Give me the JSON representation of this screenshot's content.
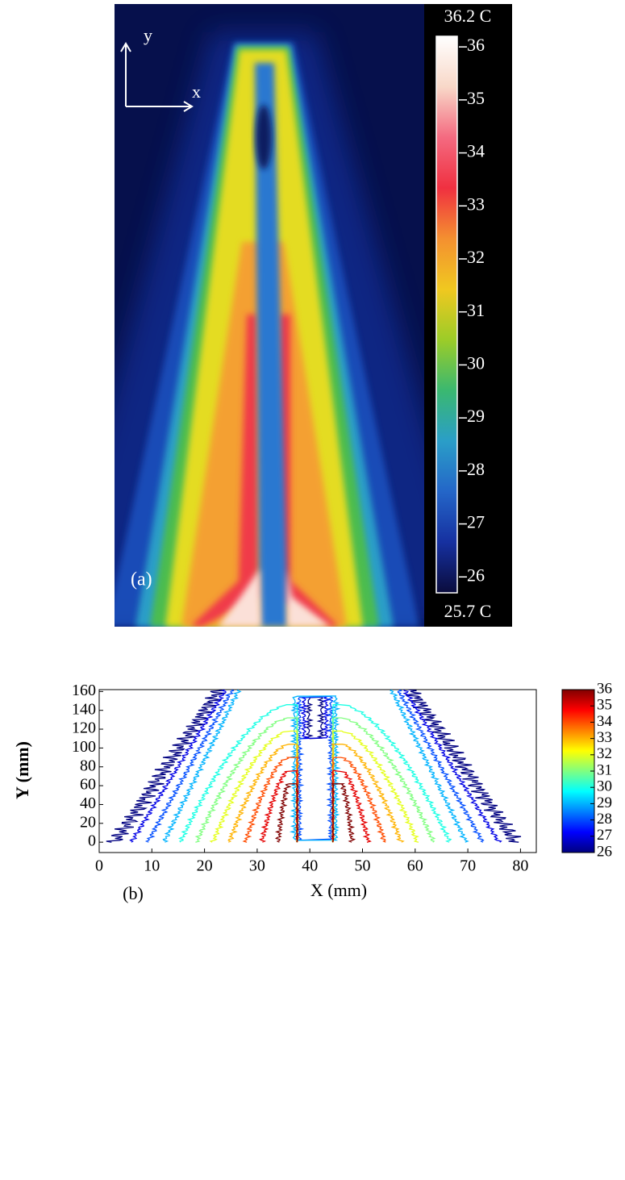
{
  "chart_data": [
    {
      "type": "thermal-image",
      "panel_label": "(a)",
      "y_arrow_label": "y",
      "x_arrow_label": "x",
      "colorbar_max_label": "36.2 C",
      "colorbar_min_label": "25.7 C",
      "clim": [
        25.7,
        36.2
      ],
      "cticks": [
        26,
        27,
        28,
        29,
        30,
        31,
        32,
        33,
        34,
        35,
        36
      ],
      "colormap_colors": [
        "#0a0c3c",
        "#1630a0",
        "#2466c8",
        "#2a9ec8",
        "#3ab870",
        "#9ccc28",
        "#f0c820",
        "#f49030",
        "#f03040",
        "#f46a80",
        "#f8d8c8",
        "#ffffff"
      ]
    },
    {
      "type": "contour",
      "panel_label": "(b)",
      "xlabel": "X (mm)",
      "ylabel": "Y (mm)",
      "xlim": [
        0,
        83
      ],
      "ylim": [
        -11,
        162
      ],
      "xticks": [
        0,
        10,
        20,
        30,
        40,
        50,
        60,
        70,
        80
      ],
      "yticks": [
        0,
        20,
        40,
        60,
        80,
        100,
        120,
        140,
        160
      ],
      "levels": [
        26,
        27,
        28,
        29,
        30,
        31,
        32,
        33,
        34,
        35,
        36
      ],
      "clim": [
        26,
        36
      ],
      "cticks": [
        26,
        27,
        28,
        29,
        30,
        31,
        32,
        33,
        34,
        35,
        36
      ],
      "colormap": "jet"
    }
  ]
}
